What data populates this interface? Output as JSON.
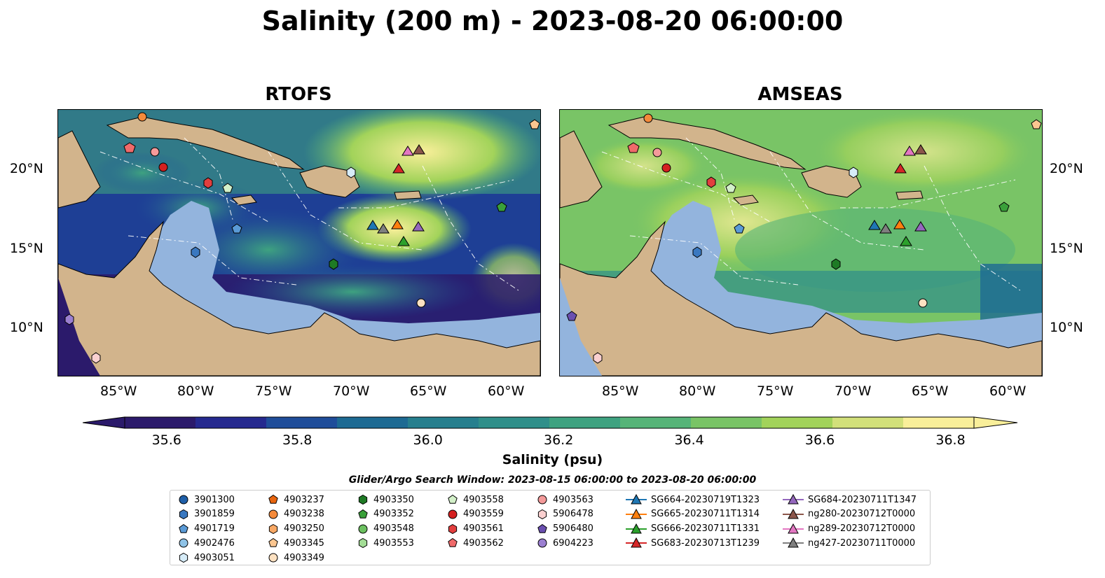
{
  "title": "Salinity (200 m) - 2023-08-20 06:00:00",
  "panels": [
    {
      "title": "RTOFS"
    },
    {
      "title": "AMSEAS"
    }
  ],
  "lon_ticks": [
    "85°W",
    "80°W",
    "75°W",
    "70°W",
    "65°W",
    "60°W"
  ],
  "lat_ticks": [
    "20°N",
    "15°N",
    "10°N"
  ],
  "colorbar": {
    "label": "Salinity (psu)",
    "ticks": [
      "35.6",
      "35.8",
      "36.0",
      "36.2",
      "36.4",
      "36.6",
      "36.8"
    ],
    "colors": [
      "#2b1a6b",
      "#25298f",
      "#1f4d9a",
      "#1d6a93",
      "#267f8e",
      "#2f8f8a",
      "#3ea280",
      "#56b478",
      "#79c466",
      "#a2d35a",
      "#d2e07a",
      "#f9ef9a"
    ]
  },
  "search_window": "Glider/Argo Search Window: 2023-08-15 06:00:00 to 2023-08-20 06:00:00",
  "legend": [
    {
      "label": "3901300",
      "marker": "circle",
      "color": "#1f5fa8"
    },
    {
      "label": "3901859",
      "marker": "hexagon",
      "color": "#3a78c0"
    },
    {
      "label": "4901719",
      "marker": "pentagon",
      "color": "#5a9ad6"
    },
    {
      "label": "4902476",
      "marker": "circle",
      "color": "#8ec2e6"
    },
    {
      "label": "4903051",
      "marker": "hexagon",
      "color": "#d6ecf8"
    },
    {
      "label": "4903237",
      "marker": "pentagon",
      "color": "#e8650f"
    },
    {
      "label": "4903238",
      "marker": "circle",
      "color": "#f58a3a"
    },
    {
      "label": "4903250",
      "marker": "hexagon",
      "color": "#f8a865"
    },
    {
      "label": "4903345",
      "marker": "pentagon",
      "color": "#fbc690"
    },
    {
      "label": "4903349",
      "marker": "circle",
      "color": "#fde1c1"
    },
    {
      "label": "4903350",
      "marker": "hexagon",
      "color": "#1e7a25"
    },
    {
      "label": "4903352",
      "marker": "pentagon",
      "color": "#3aa03a"
    },
    {
      "label": "4903548",
      "marker": "circle",
      "color": "#6cc060"
    },
    {
      "label": "4903553",
      "marker": "hexagon",
      "color": "#a3dd96"
    },
    {
      "label": "4903558",
      "marker": "pentagon",
      "color": "#d3f0c9"
    },
    {
      "label": "4903559",
      "marker": "circle",
      "color": "#d42020"
    },
    {
      "label": "4903561",
      "marker": "hexagon",
      "color": "#e23e3e"
    },
    {
      "label": "4903562",
      "marker": "pentagon",
      "color": "#ef6a6a"
    },
    {
      "label": "4903563",
      "marker": "circle",
      "color": "#f49a9a"
    },
    {
      "label": "5906478",
      "marker": "hexagon",
      "color": "#fad0d0"
    },
    {
      "label": "5906480",
      "marker": "pentagon",
      "color": "#6a4fb0"
    },
    {
      "label": "6904223",
      "marker": "circle",
      "color": "#9b7fd1"
    },
    {
      "label": "SG664-20230719T1323",
      "marker": "triangle",
      "color": "#1f77b4"
    },
    {
      "label": "SG665-20230711T1314",
      "marker": "triangle",
      "color": "#ff7f0e"
    },
    {
      "label": "SG666-20230711T1331",
      "marker": "triangle",
      "color": "#2ca02c"
    },
    {
      "label": "SG683-20230713T1239",
      "marker": "triangle",
      "color": "#d62728"
    },
    {
      "label": "SG684-20230711T1347",
      "marker": "triangle",
      "color": "#9467bd"
    },
    {
      "label": "ng280-20230712T0000",
      "marker": "triangle",
      "color": "#8c564b"
    },
    {
      "label": "ng289-20230712T0000",
      "marker": "triangle",
      "color": "#e377c2"
    },
    {
      "label": "ng427-20230711T0000",
      "marker": "triangle",
      "color": "#7f7f7f"
    }
  ]
}
